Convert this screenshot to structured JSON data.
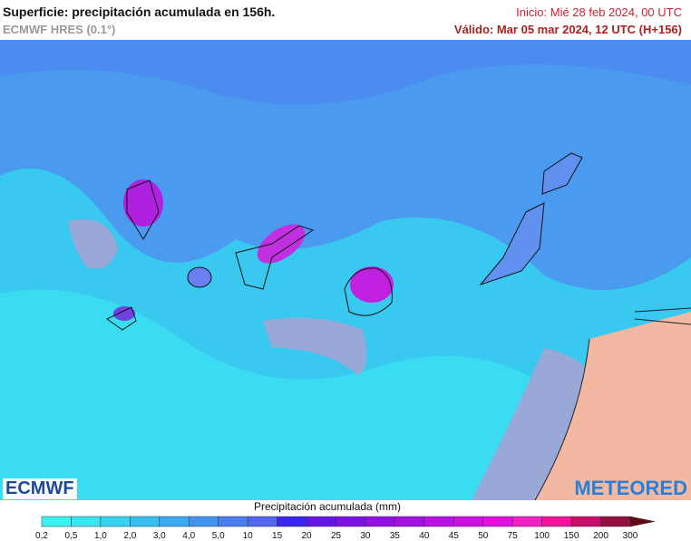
{
  "header": {
    "title": "Superficie: precipitación acumulada en 156h.",
    "model": "ECMWF HRES (0.1°)",
    "start": "Inicio: Mié 28 feb 2024, 00 UTC",
    "valid": "Válido: Mar 05 mar 2024, 12 UTC (H+156)"
  },
  "logos": {
    "left": "ECMWF",
    "right": "METEORED"
  },
  "legend": {
    "title": "Precipitación acumulada (mm)",
    "labels": [
      "0,2",
      "0,5",
      "1,0",
      "2,0",
      "3,0",
      "4,0",
      "5,0",
      "10",
      "15",
      "20",
      "25",
      "30",
      "35",
      "40",
      "45",
      "50",
      "75",
      "100",
      "150",
      "200",
      "300"
    ],
    "colors": [
      "#3ff2f2",
      "#3ae4f2",
      "#38d2f2",
      "#36c0f2",
      "#3aaaf2",
      "#4094f0",
      "#487ef0",
      "#5068f0",
      "#3a24f0",
      "#6414e4",
      "#7c12e2",
      "#9210e2",
      "#a410e2",
      "#b810e2",
      "#cc10e2",
      "#e010e0",
      "#f020c4",
      "#f0149a",
      "#c8106a",
      "#921040",
      "#620a14"
    ]
  }
}
